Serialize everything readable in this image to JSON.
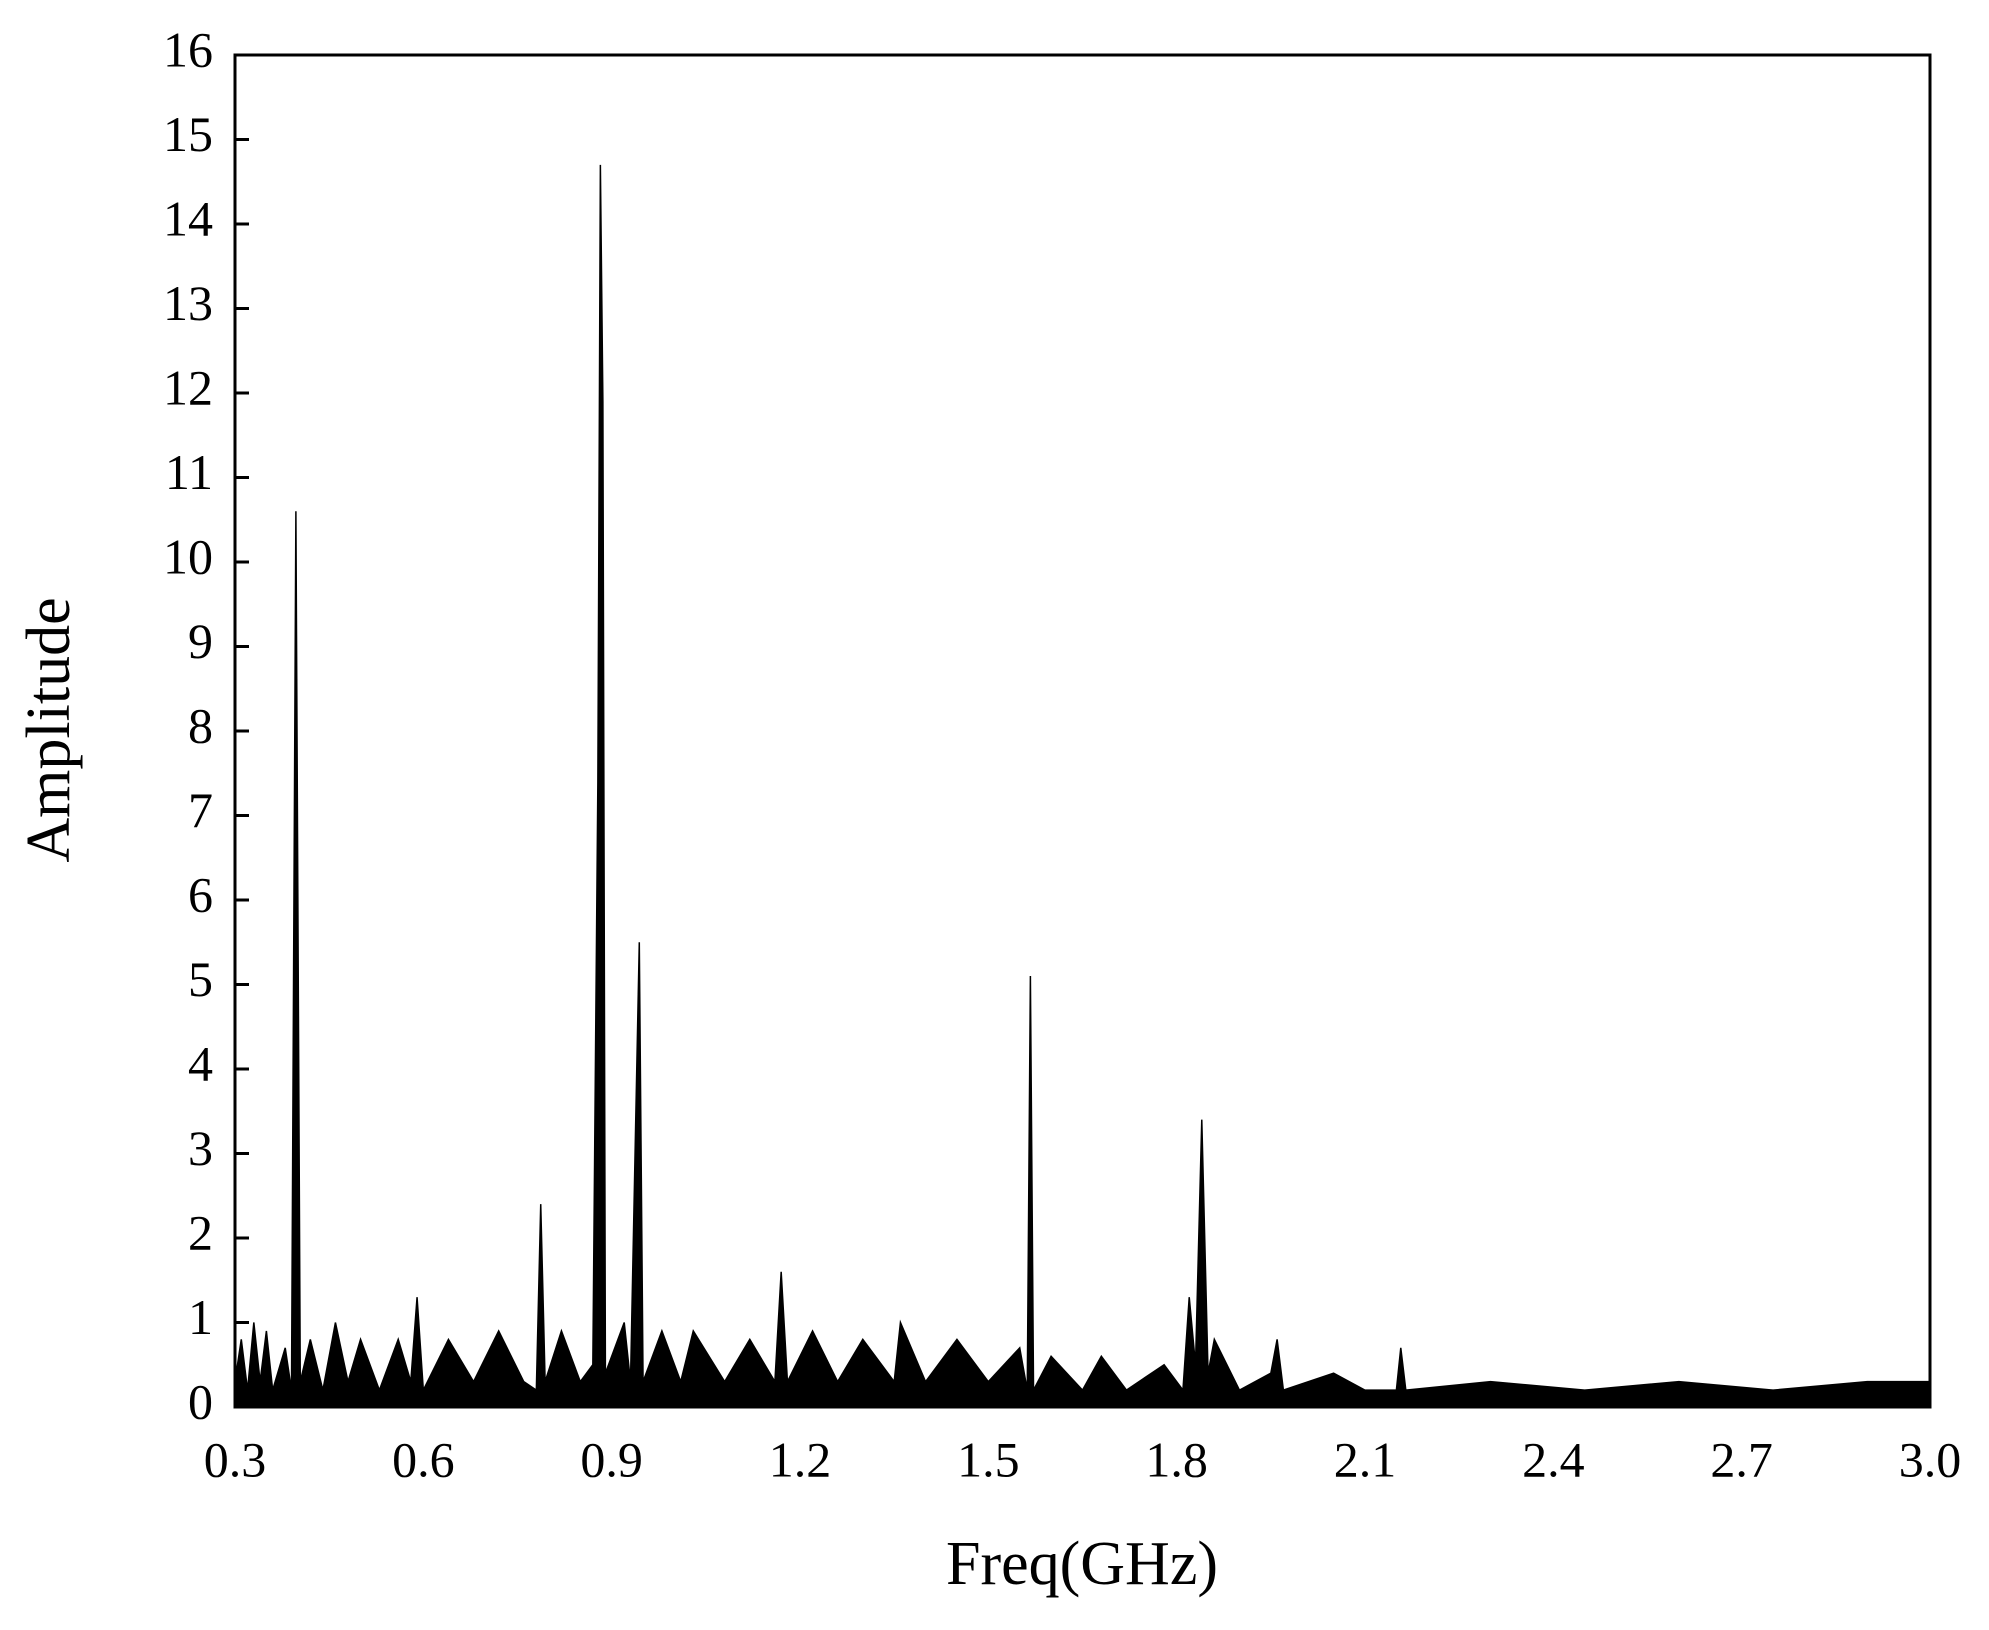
{
  "chart_data": {
    "type": "area",
    "x_label": "Freq(GHz)",
    "y_label": "Amplitude",
    "color": "#000000",
    "x": [
      0.3,
      0.31,
      0.32,
      0.33,
      0.34,
      0.35,
      0.36,
      0.38,
      0.39,
      0.397,
      0.404,
      0.42,
      0.44,
      0.46,
      0.48,
      0.5,
      0.53,
      0.56,
      0.58,
      0.59,
      0.6,
      0.64,
      0.68,
      0.72,
      0.76,
      0.78,
      0.787,
      0.794,
      0.82,
      0.85,
      0.87,
      0.878,
      0.882,
      0.886,
      0.89,
      0.92,
      0.93,
      0.944,
      0.95,
      0.98,
      1.01,
      1.03,
      1.08,
      1.12,
      1.16,
      1.17,
      1.18,
      1.22,
      1.26,
      1.3,
      1.35,
      1.36,
      1.4,
      1.45,
      1.5,
      1.55,
      1.562,
      1.567,
      1.572,
      1.6,
      1.65,
      1.68,
      1.72,
      1.78,
      1.81,
      1.82,
      1.83,
      1.84,
      1.85,
      1.86,
      1.9,
      1.95,
      1.96,
      1.97,
      2.05,
      2.1,
      2.15,
      2.157,
      2.165,
      2.3,
      2.45,
      2.6,
      2.75,
      2.9,
      3.0
    ],
    "values": [
      0.3,
      0.8,
      0.2,
      1.0,
      0.3,
      0.9,
      0.2,
      0.7,
      0.2,
      10.6,
      0.3,
      0.8,
      0.2,
      1.0,
      0.3,
      0.8,
      0.2,
      0.8,
      0.3,
      1.3,
      0.2,
      0.8,
      0.3,
      0.9,
      0.3,
      0.2,
      2.4,
      0.3,
      0.9,
      0.3,
      0.5,
      7.4,
      14.7,
      11.9,
      0.4,
      1.0,
      0.3,
      5.5,
      0.3,
      0.9,
      0.3,
      0.9,
      0.3,
      0.8,
      0.3,
      1.6,
      0.3,
      0.9,
      0.3,
      0.8,
      0.3,
      1.0,
      0.3,
      0.8,
      0.3,
      0.7,
      0.2,
      5.1,
      0.2,
      0.6,
      0.2,
      0.6,
      0.2,
      0.5,
      0.2,
      1.3,
      0.5,
      3.4,
      0.4,
      0.8,
      0.2,
      0.4,
      0.8,
      0.2,
      0.4,
      0.2,
      0.2,
      0.7,
      0.2,
      0.3,
      0.2,
      0.3,
      0.2,
      0.3,
      0.3
    ],
    "xlim": [
      0.3,
      3.0
    ],
    "xticks": [
      0.3,
      0.6,
      0.9,
      1.2,
      1.5,
      1.8,
      2.1,
      2.4,
      2.7,
      {
        "value": 3.0,
        "label": "3.0"
      }
    ],
    "ylim": [
      0,
      16
    ],
    "yticks": [
      0,
      1,
      2,
      3,
      4,
      5,
      6,
      7,
      8,
      9,
      10,
      11,
      12,
      13,
      14,
      15,
      16
    ]
  }
}
